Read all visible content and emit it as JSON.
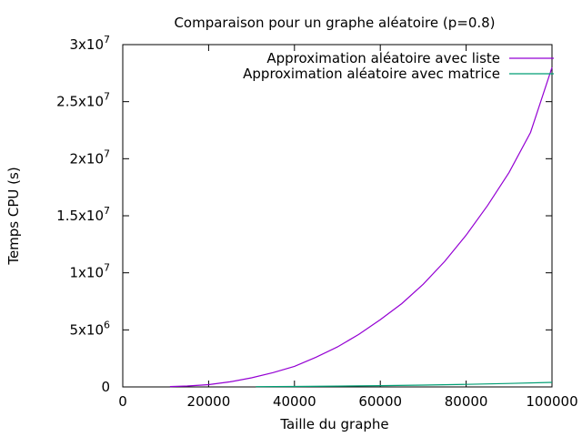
{
  "chart_data": {
    "type": "line",
    "title": "Comparaison pour un graphe aléatoire (p=0.8)",
    "xlabel": "Taille du graphe",
    "ylabel": "Temps CPU (s)",
    "xlim": [
      0,
      100000
    ],
    "ylim": [
      0,
      30000000
    ],
    "grid": false,
    "legend_position": "top-right",
    "x_ticks": [
      {
        "value": 0,
        "label": "0"
      },
      {
        "value": 20000,
        "label": "20000"
      },
      {
        "value": 40000,
        "label": "40000"
      },
      {
        "value": 60000,
        "label": "60000"
      },
      {
        "value": 80000,
        "label": "80000"
      },
      {
        "value": 100000,
        "label": "100000"
      }
    ],
    "y_ticks": [
      {
        "value": 0,
        "mant": "0",
        "exp": ""
      },
      {
        "value": 5000000,
        "mant": "5x10",
        "exp": "6"
      },
      {
        "value": 10000000,
        "mant": "1x10",
        "exp": "7"
      },
      {
        "value": 15000000,
        "mant": "1.5x10",
        "exp": "7"
      },
      {
        "value": 20000000,
        "mant": "2x10",
        "exp": "7"
      },
      {
        "value": 25000000,
        "mant": "2.5x10",
        "exp": "7"
      },
      {
        "value": 30000000,
        "mant": "3x10",
        "exp": "7"
      }
    ],
    "series": [
      {
        "name": "Approximation aléatoire avec liste",
        "color": "#9400d3",
        "x": [
          11000,
          15000,
          20000,
          25000,
          30000,
          35000,
          40000,
          45000,
          50000,
          55000,
          60000,
          65000,
          70000,
          75000,
          80000,
          85000,
          90000,
          95000,
          100000
        ],
        "values": [
          30000,
          80000,
          200000,
          450000,
          800000,
          1250000,
          1800000,
          2600000,
          3500000,
          4600000,
          5900000,
          7300000,
          9000000,
          11000000,
          13300000,
          15900000,
          18800000,
          22300000,
          28000000
        ]
      },
      {
        "name": "Approximation aléatoire avec matrice",
        "color": "#009e73",
        "x": [
          31000,
          40000,
          50000,
          60000,
          70000,
          80000,
          90000,
          100000
        ],
        "values": [
          20000,
          40000,
          70000,
          110000,
          160000,
          220000,
          300000,
          400000
        ]
      }
    ]
  }
}
